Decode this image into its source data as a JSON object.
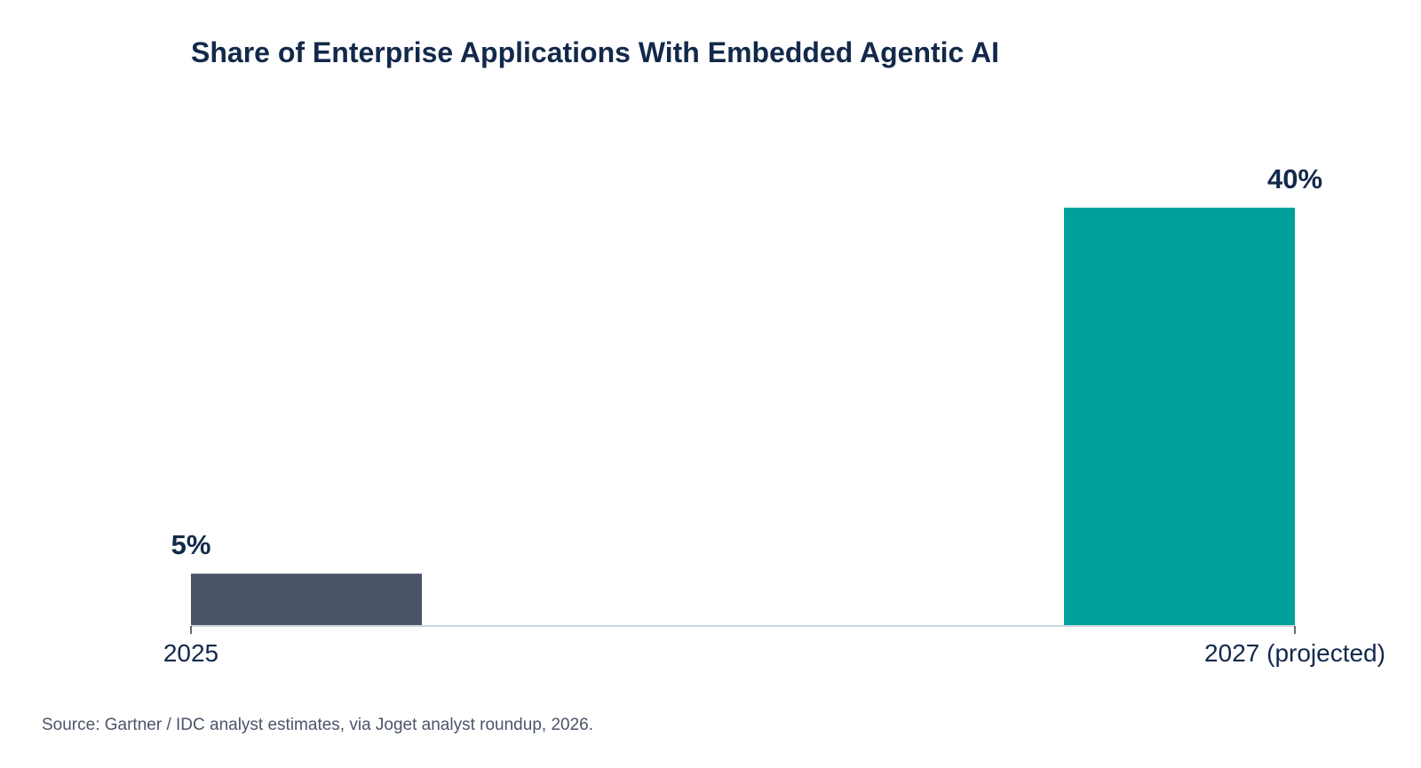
{
  "chart_data": {
    "type": "bar",
    "title": "Share of Enterprise Applications With Embedded Agentic AI",
    "categories": [
      "2025",
      "2027 (projected)"
    ],
    "values": [
      5,
      40
    ],
    "value_labels": [
      "5%",
      "40%"
    ],
    "xlabel": "",
    "ylabel": "",
    "ylim": [
      0,
      45
    ],
    "grid": false,
    "legend": "none",
    "bar_colors": [
      "#4a5568",
      "#00a19a"
    ]
  },
  "source_note": "Source: Gartner / IDC analyst estimates, via Joget analyst roundup, 2026.",
  "colors": {
    "title": "#13294b",
    "value_label": "#13294b",
    "tick_label": "#13294b",
    "source": "#4a5568",
    "axis": "#cbd5e0",
    "tick_mark": "#2d3748"
  }
}
